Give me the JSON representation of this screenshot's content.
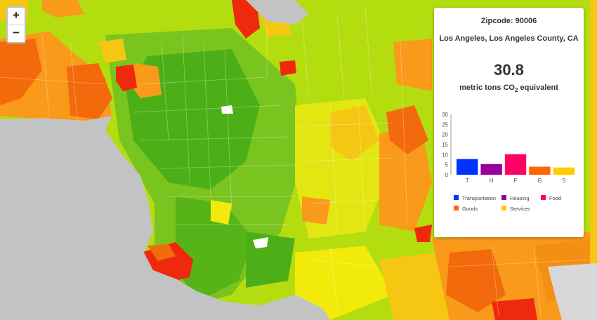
{
  "zoom": {
    "in_label": "+",
    "out_label": "−"
  },
  "panel": {
    "zip_label": "Zipcode:",
    "zip_value": "90006",
    "place": "Los Angeles, Los Angeles County, CA",
    "total": "30.8",
    "units_prefix": "metric tons CO",
    "units_sub": "2",
    "units_suffix": " equivalent"
  },
  "chart_data": {
    "type": "bar",
    "categories": [
      "T",
      "H",
      "F",
      "G",
      "S"
    ],
    "series": [
      {
        "name": "Transportation",
        "color": "#0033ff"
      },
      {
        "name": "Housing",
        "color": "#990099"
      },
      {
        "name": "Food",
        "color": "#ff0066"
      },
      {
        "name": "Goods",
        "color": "#ff6600"
      },
      {
        "name": "Services",
        "color": "#ffcc00"
      }
    ],
    "values": [
      7.8,
      5.3,
      10.2,
      4.0,
      3.6
    ],
    "ylim": [
      0,
      30
    ],
    "yticks": [
      0,
      5,
      10,
      15,
      20,
      25,
      30
    ],
    "legend": "bottom"
  },
  "map_colors": {
    "water": "#c3c3c3",
    "dark_green": "#4caf17",
    "green": "#7ac41f",
    "yellow_green": "#b4dd10",
    "yellow": "#f2ea0a",
    "orange": "#f99a1a",
    "dark_orange": "#f26a0c",
    "red": "#ef2a0c"
  }
}
